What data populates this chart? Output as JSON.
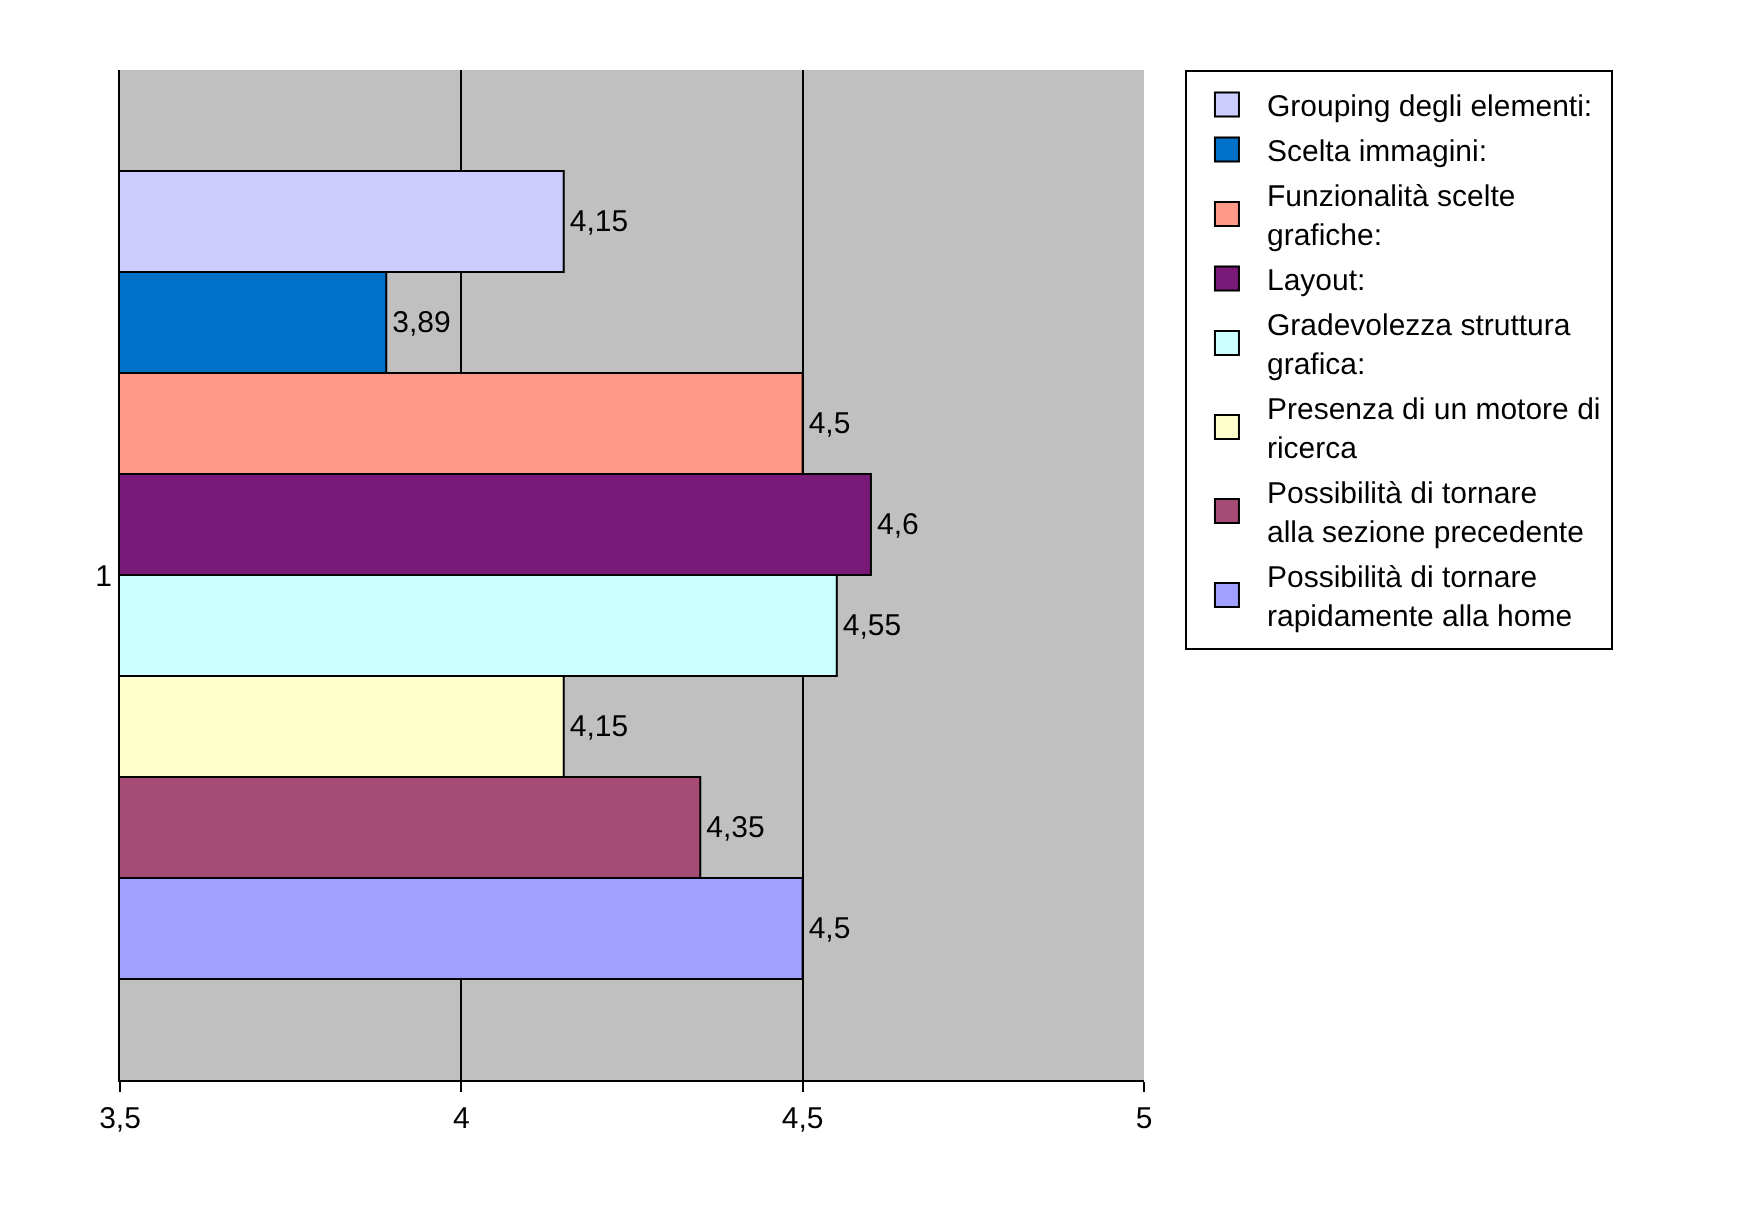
{
  "chart_data": {
    "type": "bar",
    "orientation": "horizontal",
    "categories": [
      "1"
    ],
    "series": [
      {
        "name": "Grouping degli elementi:",
        "color": "#ccccff",
        "values": [
          4.15
        ],
        "value_labels": [
          "4,15"
        ]
      },
      {
        "name": "Scelta immagini:",
        "color": "#0070c8",
        "values": [
          3.89
        ],
        "value_labels": [
          "3,89"
        ]
      },
      {
        "name": "Funzionalità scelte grafiche:",
        "color": "#ff9988",
        "values": [
          4.5
        ],
        "value_labels": [
          "4,5"
        ]
      },
      {
        "name": "Layout:",
        "color": "#7a1a78",
        "values": [
          4.6
        ],
        "value_labels": [
          "4,6"
        ]
      },
      {
        "name": "Gradevolezza struttura grafica:",
        "color": "#ccffff",
        "values": [
          4.55
        ],
        "value_labels": [
          "4,55"
        ]
      },
      {
        "name": "Presenza di un motore di ricerca",
        "color": "#ffffcc",
        "values": [
          4.15
        ],
        "value_labels": [
          "4,15"
        ]
      },
      {
        "name": "Possibilità di tornare alla sezione precedente",
        "color": "#a64a76",
        "values": [
          4.35
        ],
        "value_labels": [
          "4,35"
        ]
      },
      {
        "name": "Possibilità di tornare rapidamente alla home",
        "color": "#a0a0ff",
        "values": [
          4.5
        ],
        "value_labels": [
          "4,5"
        ]
      }
    ],
    "xlim": [
      3.5,
      5
    ],
    "xticks": [
      {
        "value": 3.5,
        "label": "3,5"
      },
      4,
      {
        "value": 4.5,
        "label": "4,5"
      },
      5
    ],
    "grid": "x",
    "legend": "right"
  }
}
